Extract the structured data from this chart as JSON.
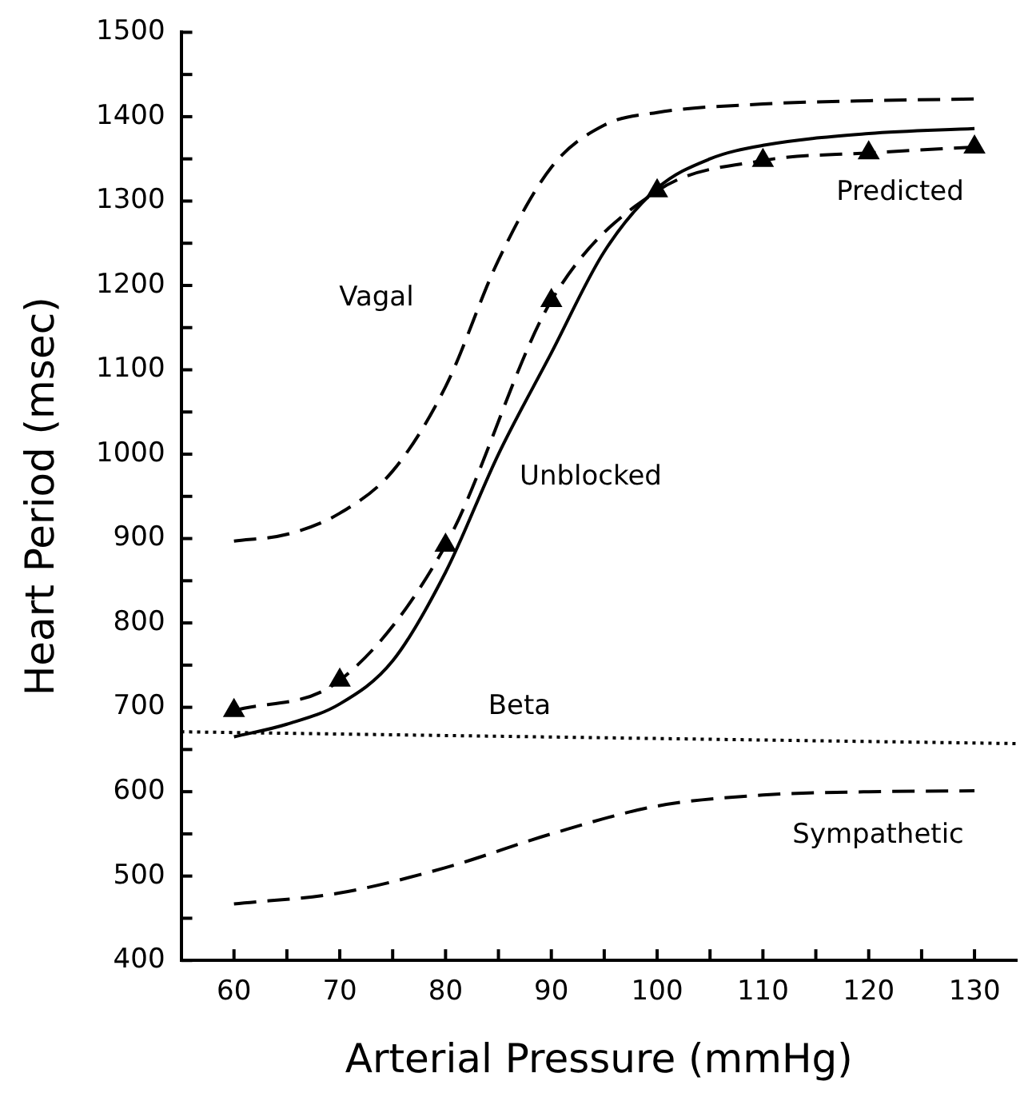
{
  "chart_data": {
    "type": "line",
    "xlabel": "Arterial Pressure (mmHg)",
    "ylabel": "Heart Period (msec)",
    "xlim": [
      55,
      134
    ],
    "xticks": [
      60,
      {
        "value": 65,
        "label": null
      },
      70,
      {
        "value": 75,
        "label": null
      },
      80,
      {
        "value": 85,
        "label": null
      },
      90,
      {
        "value": 95,
        "label": null
      },
      100,
      {
        "value": 105,
        "label": null
      },
      110,
      {
        "value": 115,
        "label": null
      },
      120,
      {
        "value": 125,
        "label": null
      },
      130
    ],
    "ylim": [
      400,
      1500
    ],
    "yticks": [
      400,
      {
        "value": 450,
        "label": null
      },
      500,
      {
        "value": 550,
        "label": null
      },
      600,
      {
        "value": 650,
        "label": null
      },
      700,
      {
        "value": 750,
        "label": null
      },
      800,
      {
        "value": 850,
        "label": null
      },
      900,
      {
        "value": 950,
        "label": null
      },
      1000,
      {
        "value": 1050,
        "label": null
      },
      1100,
      {
        "value": 1150,
        "label": null
      },
      1200,
      {
        "value": 1250,
        "label": null
      },
      1300,
      {
        "value": 1350,
        "label": null
      },
      1400,
      {
        "value": 1450,
        "label": null
      },
      1500
    ],
    "grid": false,
    "legend": false,
    "series": [
      {
        "name": "Vagal",
        "color": "#000000",
        "line_style": "dashed",
        "marker": "none",
        "x": [
          60,
          65,
          70,
          75,
          80,
          85,
          90,
          95,
          100,
          110,
          120,
          130
        ],
        "values": [
          897,
          905,
          930,
          980,
          1080,
          1230,
          1340,
          1390,
          1405,
          1415,
          1419,
          1421
        ]
      },
      {
        "name": "Predicted",
        "color": "#000000",
        "line_style": "dashed",
        "marker": "triangle",
        "x": [
          60,
          70,
          80,
          90,
          100,
          110,
          120,
          130
        ],
        "values": [
          696,
          732,
          892,
          1182,
          1312,
          1348,
          1357,
          1364
        ]
      },
      {
        "name": "Unblocked",
        "color": "#000000",
        "line_style": "solid",
        "marker": "none",
        "x": [
          60,
          65,
          70,
          75,
          80,
          85,
          90,
          95,
          100,
          105,
          110,
          120,
          130
        ],
        "values": [
          665,
          680,
          704,
          755,
          860,
          1000,
          1120,
          1240,
          1315,
          1350,
          1366,
          1380,
          1386
        ]
      },
      {
        "name": "Beta",
        "color": "#000000",
        "line_style": "dotted",
        "marker": "none",
        "x": [
          55,
          134
        ],
        "values": [
          671,
          657
        ]
      },
      {
        "name": "Sympathetic",
        "color": "#000000",
        "line_style": "dashed",
        "marker": "none",
        "x": [
          60,
          70,
          80,
          90,
          100,
          110,
          120,
          130
        ],
        "values": [
          467,
          480,
          510,
          550,
          583,
          596,
          600,
          601
        ]
      }
    ]
  }
}
